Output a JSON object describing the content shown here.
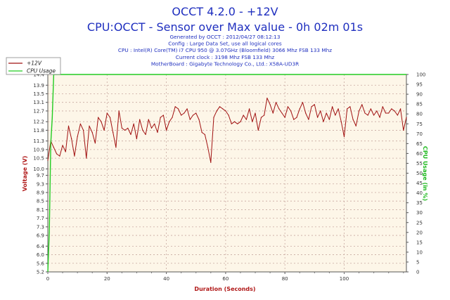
{
  "header": {
    "title": "OCCT 4.2.0 - +12V",
    "subtitle": "CPU:OCCT - Sensor over Max value - 0h 02m 01s",
    "info_lines": [
      "Generated by OCCT : 2012/04/27 08:12:13",
      "Config : Large Data Set, use all logical cores",
      "CPU : Intel(R) Core(TM) i7 CPU 950 @ 3.07GHz (Bloomfield) 3066 Mhz FSB 133 Mhz",
      "Current clock : 3198 Mhz FSB 133 Mhz",
      "MotherBoard : Gigabyte Technology Co., Ltd.: X58A-UD3R"
    ]
  },
  "colors": {
    "voltage": "#a01010",
    "cpu_usage": "#22cc22",
    "title": "#1f2fbf",
    "plot_bg": "#fdf6e8",
    "grid": "#c8a8a0"
  },
  "chart_data": {
    "type": "line",
    "xlabel": "Duration (Seconds)",
    "ylabel": "Voltage (V)",
    "y2label": "CPU Usage (in %)",
    "xlim": [
      0,
      121
    ],
    "ylim": [
      5.2,
      14.4
    ],
    "y2lim": [
      0,
      100
    ],
    "x_ticks": [
      0,
      20,
      40,
      60,
      80,
      100
    ],
    "y_ticks": [
      5.2,
      5.6,
      6.0,
      6.4,
      6.9,
      7.3,
      7.7,
      8.1,
      8.5,
      8.9,
      9.3,
      9.7,
      10.0,
      10.5,
      10.9,
      11.3,
      11.8,
      12.2,
      12.7,
      13.1,
      13.5,
      13.9,
      14.4
    ],
    "y2_ticks": [
      0,
      5,
      10,
      15,
      20,
      25,
      30,
      35,
      40,
      45,
      50,
      55,
      60,
      65,
      70,
      75,
      80,
      85,
      90,
      95,
      100
    ],
    "grid": true,
    "legend_position": "top-left",
    "series": [
      {
        "name": "+12V",
        "axis": "left",
        "x": [
          0,
          1,
          2,
          3,
          4,
          5,
          6,
          7,
          8,
          9,
          10,
          11,
          12,
          13,
          14,
          15,
          16,
          17,
          18,
          19,
          20,
          21,
          22,
          23,
          24,
          25,
          26,
          27,
          28,
          29,
          30,
          31,
          32,
          33,
          34,
          35,
          36,
          37,
          38,
          39,
          40,
          41,
          42,
          43,
          44,
          45,
          46,
          47,
          48,
          49,
          50,
          51,
          52,
          53,
          54,
          55,
          56,
          57,
          58,
          59,
          60,
          61,
          62,
          63,
          64,
          65,
          66,
          67,
          68,
          69,
          70,
          71,
          72,
          73,
          74,
          75,
          76,
          77,
          78,
          79,
          80,
          81,
          82,
          83,
          84,
          85,
          86,
          87,
          88,
          89,
          90,
          91,
          92,
          93,
          94,
          95,
          96,
          97,
          98,
          99,
          100,
          101,
          102,
          103,
          104,
          105,
          106,
          107,
          108,
          109,
          110,
          111,
          112,
          113,
          114,
          115,
          116,
          117,
          118,
          119,
          120,
          121
        ],
        "values": [
          10.4,
          11.3,
          11.0,
          10.7,
          10.6,
          11.1,
          10.8,
          12.0,
          11.4,
          10.6,
          11.5,
          12.1,
          11.8,
          10.5,
          12.0,
          11.7,
          11.2,
          12.4,
          12.2,
          11.8,
          12.6,
          12.4,
          11.7,
          11.0,
          12.7,
          11.9,
          11.8,
          11.9,
          11.6,
          12.1,
          11.4,
          12.3,
          11.8,
          11.6,
          12.3,
          11.9,
          12.1,
          11.7,
          12.4,
          12.5,
          11.8,
          12.2,
          12.4,
          12.9,
          12.8,
          12.5,
          12.6,
          12.8,
          12.3,
          12.5,
          12.6,
          12.3,
          11.7,
          11.6,
          11.0,
          10.3,
          12.4,
          12.7,
          12.9,
          12.8,
          12.7,
          12.5,
          12.1,
          12.2,
          12.1,
          12.2,
          12.5,
          12.3,
          12.8,
          12.2,
          12.6,
          11.8,
          12.4,
          12.5,
          13.3,
          13.0,
          12.6,
          13.1,
          12.8,
          12.6,
          12.4,
          12.9,
          12.7,
          12.3,
          12.4,
          12.8,
          13.1,
          12.6,
          12.3,
          12.9,
          13.0,
          12.4,
          12.7,
          12.2,
          12.6,
          12.3,
          12.9,
          12.5,
          12.8,
          12.2,
          11.5,
          12.8,
          12.9,
          12.3,
          12.0,
          12.7,
          13.0,
          12.6,
          12.5,
          12.8,
          12.5,
          12.7,
          12.4,
          12.9,
          12.6,
          12.6,
          12.8,
          12.7,
          12.5,
          12.8,
          11.8,
          12.4
        ]
      },
      {
        "name": "CPU Usage",
        "axis": "right",
        "x": [
          0,
          0.5,
          1,
          1.5,
          2,
          3,
          121
        ],
        "values": [
          0,
          20,
          65,
          78,
          100,
          100,
          100
        ]
      }
    ]
  }
}
